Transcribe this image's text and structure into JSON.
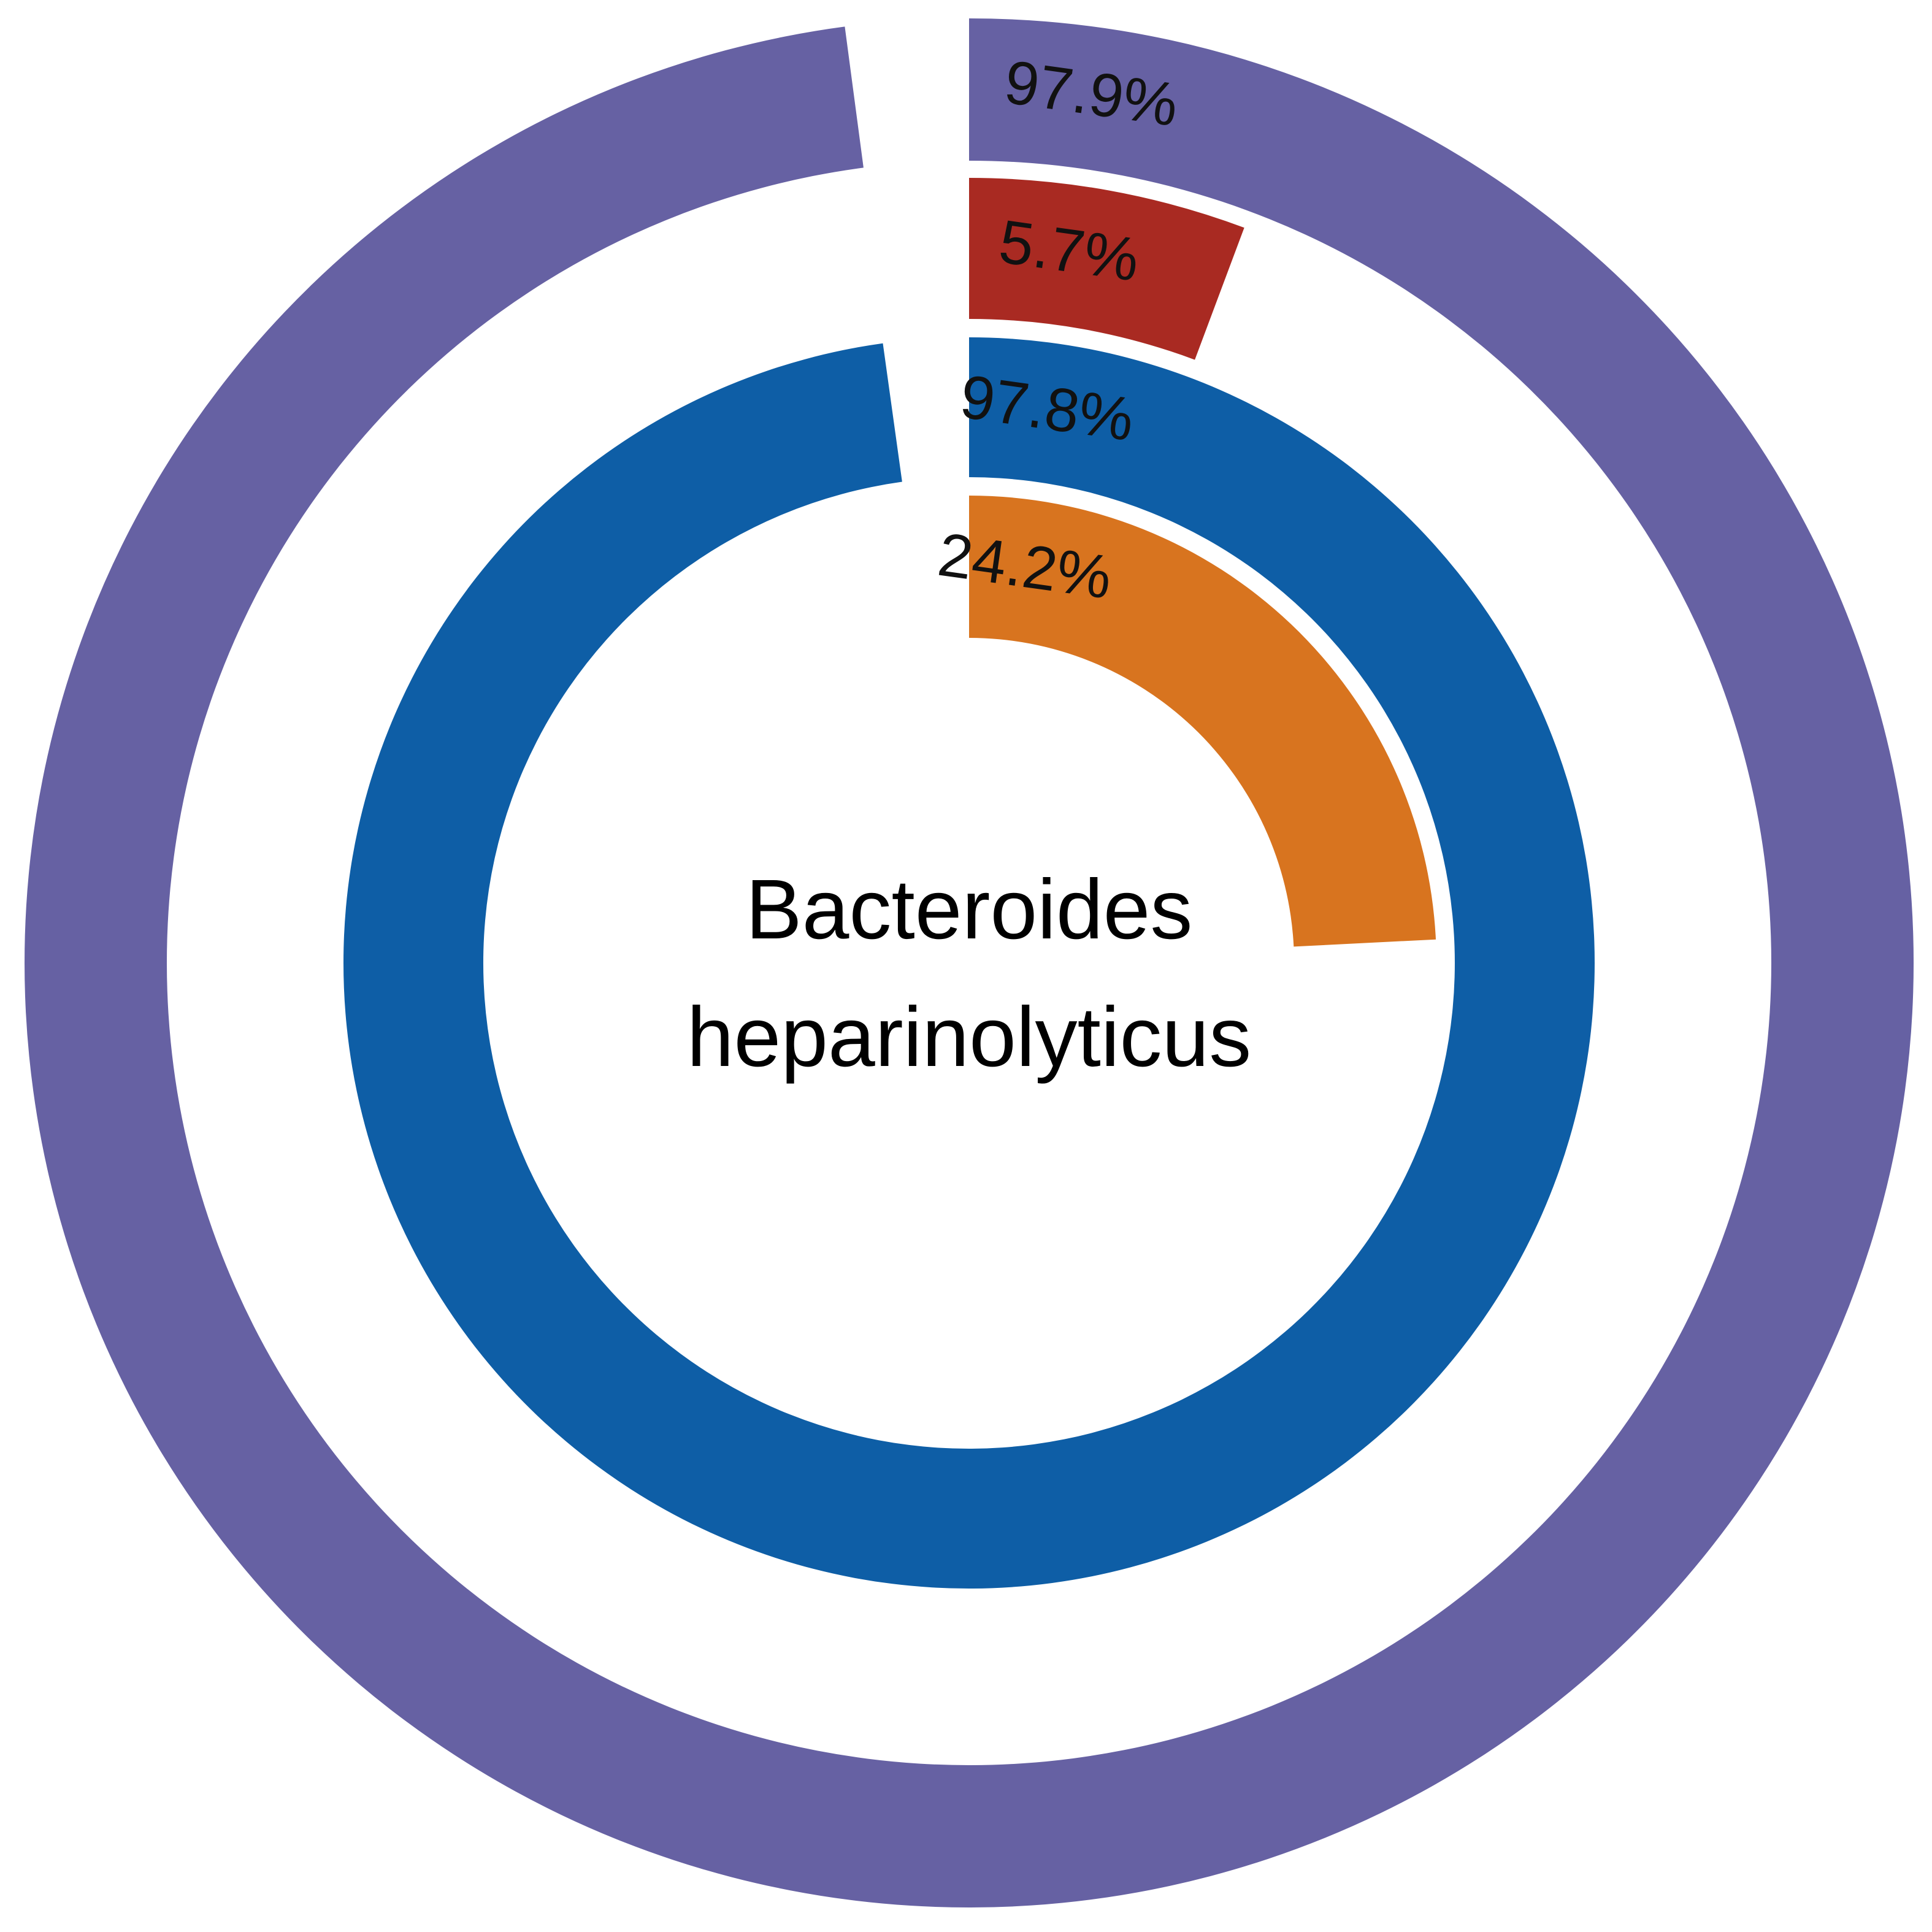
{
  "chart_data": {
    "type": "radial-bar",
    "center_label": [
      "Bacteroides",
      "heparinolyticus"
    ],
    "rings": [
      {
        "value": 97.9,
        "label": "97.9%",
        "color": "#6661a3"
      },
      {
        "value": 5.7,
        "label": "5.7%",
        "color": "#a92a22"
      },
      {
        "value": 97.8,
        "label": "97.8%",
        "color": "#0e5ea6"
      },
      {
        "value": 24.2,
        "label": "24.2%",
        "color": "#d8741f"
      }
    ]
  }
}
